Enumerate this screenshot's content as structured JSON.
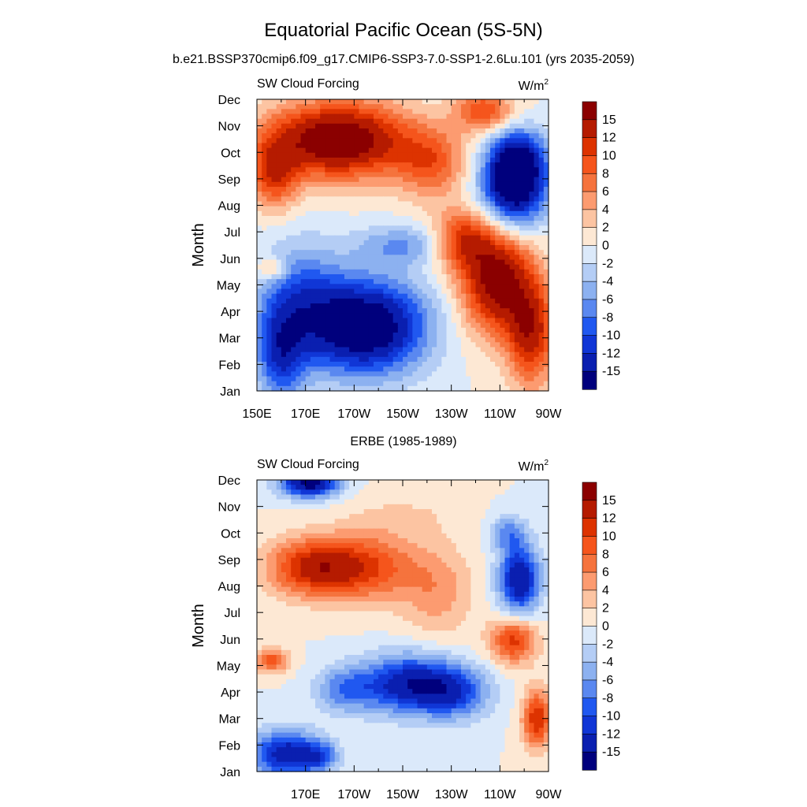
{
  "figure": {
    "title": "Equatorial Pacific Ocean (5S-5N)"
  },
  "chart_data": [
    {
      "type": "heatmap",
      "title": "b.e21.BSSP370cmip6.f09_g17.CMIP6-SSP3-7.0-SSP1-2.6Lu.101 (yrs 2035-2059)",
      "left_label": "SW Cloud Forcing",
      "units": "W/m",
      "units_superscript": "2",
      "ylabel": "Month",
      "xlabel": "",
      "y_categories": [
        "Jan",
        "Feb",
        "Mar",
        "Apr",
        "May",
        "Jun",
        "Jul",
        "Aug",
        "Sep",
        "Oct",
        "Nov",
        "Dec"
      ],
      "x_ticks": [
        {
          "lon": 150,
          "label": "150E"
        },
        {
          "lon": 170,
          "label": "170E"
        },
        {
          "lon": 190,
          "label": "170W"
        },
        {
          "lon": 210,
          "label": "150W"
        },
        {
          "lon": 230,
          "label": "130W"
        },
        {
          "lon": 250,
          "label": "110W"
        },
        {
          "lon": 270,
          "label": "90W"
        }
      ],
      "xlim": [
        150,
        270
      ],
      "ylim": [
        "Jan",
        "Dec"
      ],
      "colorbar": {
        "labels": [
          "15",
          "12",
          "10",
          "8",
          "6",
          "4",
          "2",
          "0",
          "-2",
          "-4",
          "-6",
          "-8",
          "-10",
          "-12",
          "-15"
        ],
        "colors": [
          "#8b0000",
          "#b51b00",
          "#dd3300",
          "#f5551c",
          "#f5733d",
          "#fc9b70",
          "#fcc4a2",
          "#fde8d4",
          "#dbe9fa",
          "#b4cdf5",
          "#8cb1f0",
          "#5a88f0",
          "#2058f0",
          "#1036d6",
          "#0a1fb0",
          "#00007d"
        ]
      },
      "grid": false
    },
    {
      "type": "heatmap",
      "title": "ERBE (1985-1989)",
      "left_label": "SW Cloud Forcing",
      "units": "W/m",
      "units_superscript": "2",
      "ylabel": "Month",
      "xlabel": "",
      "y_categories": [
        "Jan",
        "Feb",
        "Mar",
        "Apr",
        "May",
        "Jun",
        "Jul",
        "Aug",
        "Sep",
        "Oct",
        "Nov",
        "Dec"
      ],
      "x_ticks": [
        {
          "lon": 170,
          "label": "170E"
        },
        {
          "lon": 190,
          "label": "170W"
        },
        {
          "lon": 210,
          "label": "150W"
        },
        {
          "lon": 230,
          "label": "130W"
        },
        {
          "lon": 250,
          "label": "110W"
        },
        {
          "lon": 270,
          "label": "90W"
        }
      ],
      "xlim": [
        150,
        270
      ],
      "ylim": [
        "Jan",
        "Dec"
      ],
      "colorbar": {
        "labels": [
          "15",
          "12",
          "10",
          "8",
          "6",
          "4",
          "2",
          "0",
          "-2",
          "-4",
          "-6",
          "-8",
          "-10",
          "-12",
          "-15"
        ],
        "colors": [
          "#8b0000",
          "#b51b00",
          "#dd3300",
          "#f5551c",
          "#f5733d",
          "#fc9b70",
          "#fcc4a2",
          "#fde8d4",
          "#dbe9fa",
          "#b4cdf5",
          "#8cb1f0",
          "#5a88f0",
          "#2058f0",
          "#1036d6",
          "#0a1fb0",
          "#00007d"
        ]
      },
      "grid": false
    }
  ]
}
